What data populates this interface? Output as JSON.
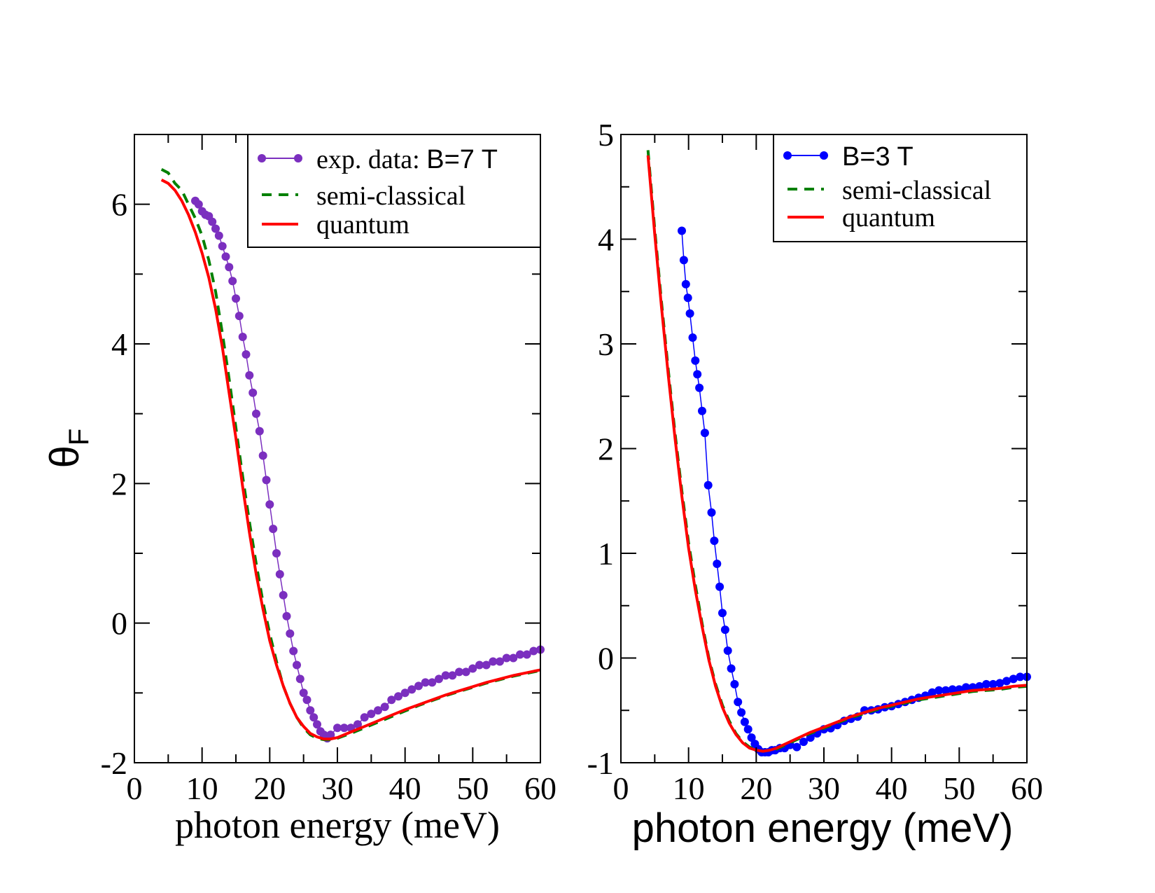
{
  "chart_data": [
    {
      "type": "line",
      "panel": "left",
      "title": "",
      "xlabel": "photon energy (meV)",
      "ylabel": "θF",
      "ylabel_main": "θ",
      "ylabel_sub": "F",
      "xlim": [
        0,
        60
      ],
      "ylim": [
        -2,
        7
      ],
      "x_ticks": [
        0,
        10,
        20,
        30,
        40,
        50,
        60
      ],
      "x_tick_labels": [
        "0",
        "10",
        "20",
        "30",
        "40",
        "50",
        "60"
      ],
      "y_ticks": [
        -2,
        0,
        2,
        4,
        6
      ],
      "y_tick_labels": [
        "-2",
        "0",
        "2",
        "4",
        "6"
      ],
      "legend_position": "top-right",
      "grid": false,
      "series": [
        {
          "name": "exp. data: B=7 T",
          "legend_label_serif": "exp. data: ",
          "legend_label_sans": "B=7 T",
          "style": "line-markers",
          "color": "#7b2fbf",
          "x": [
            9.0,
            9.5,
            10.0,
            10.5,
            11.0,
            11.5,
            12.0,
            12.5,
            13.0,
            13.5,
            14.0,
            14.5,
            15.0,
            15.5,
            16.0,
            16.5,
            17.0,
            17.5,
            18.0,
            18.5,
            19.0,
            19.5,
            20.0,
            20.5,
            21.0,
            21.5,
            22.0,
            22.5,
            23.0,
            23.5,
            24.0,
            24.5,
            25.0,
            25.5,
            26.0,
            26.5,
            27.0,
            27.5,
            28.0,
            28.5,
            29.0,
            30.0,
            31.0,
            32.0,
            33.0,
            34.0,
            35.0,
            36.0,
            37.0,
            38.0,
            39.0,
            40.0,
            41.0,
            42.0,
            43.0,
            44.0,
            45.0,
            46.0,
            47.0,
            48.0,
            49.0,
            50.0,
            51.0,
            52.0,
            53.0,
            54.0,
            55.0,
            56.0,
            57.0,
            58.0,
            59.0,
            60.0
          ],
          "y": [
            6.05,
            6.0,
            5.9,
            5.85,
            5.83,
            5.75,
            5.65,
            5.55,
            5.4,
            5.25,
            5.1,
            4.9,
            4.65,
            4.4,
            4.1,
            3.85,
            3.55,
            3.3,
            3.0,
            2.75,
            2.4,
            2.05,
            1.7,
            1.35,
            1.0,
            0.7,
            0.4,
            0.1,
            -0.15,
            -0.4,
            -0.6,
            -0.8,
            -1.0,
            -1.1,
            -1.25,
            -1.35,
            -1.45,
            -1.55,
            -1.6,
            -1.65,
            -1.6,
            -1.5,
            -1.5,
            -1.5,
            -1.45,
            -1.35,
            -1.3,
            -1.25,
            -1.2,
            -1.1,
            -1.05,
            -1.0,
            -0.95,
            -0.9,
            -0.85,
            -0.85,
            -0.8,
            -0.75,
            -0.75,
            -0.7,
            -0.7,
            -0.65,
            -0.6,
            -0.6,
            -0.55,
            -0.55,
            -0.5,
            -0.5,
            -0.45,
            -0.45,
            -0.4,
            -0.38
          ]
        },
        {
          "name": "semi-classical",
          "style": "dashed",
          "color": "#008000",
          "x": [
            4,
            5,
            6,
            7,
            8,
            9,
            10,
            11,
            12,
            13,
            14,
            15,
            16,
            17,
            18,
            19,
            20,
            21,
            22,
            23,
            24,
            25,
            26,
            27,
            28,
            29,
            30,
            32,
            34,
            36,
            38,
            40,
            42,
            44,
            46,
            48,
            50,
            52,
            54,
            56,
            58,
            60
          ],
          "y": [
            6.5,
            6.45,
            6.3,
            6.2,
            6.0,
            5.8,
            5.55,
            5.2,
            4.75,
            4.15,
            3.5,
            2.8,
            2.1,
            1.45,
            0.85,
            0.3,
            -0.15,
            -0.55,
            -0.9,
            -1.15,
            -1.35,
            -1.5,
            -1.6,
            -1.65,
            -1.67,
            -1.67,
            -1.65,
            -1.58,
            -1.5,
            -1.42,
            -1.34,
            -1.26,
            -1.18,
            -1.11,
            -1.04,
            -0.98,
            -0.92,
            -0.86,
            -0.81,
            -0.76,
            -0.72,
            -0.68
          ]
        },
        {
          "name": "quantum",
          "style": "solid",
          "color": "#ff0000",
          "x": [
            4,
            5,
            6,
            7,
            8,
            9,
            10,
            11,
            12,
            13,
            14,
            15,
            16,
            17,
            18,
            19,
            20,
            21,
            22,
            23,
            24,
            25,
            26,
            27,
            28,
            29,
            30,
            32,
            34,
            36,
            38,
            40,
            42,
            44,
            46,
            48,
            50,
            52,
            54,
            56,
            58,
            60
          ],
          "y": [
            6.35,
            6.3,
            6.2,
            6.05,
            5.85,
            5.6,
            5.3,
            4.95,
            4.5,
            3.95,
            3.3,
            2.65,
            1.95,
            1.3,
            0.7,
            0.2,
            -0.25,
            -0.6,
            -0.9,
            -1.15,
            -1.35,
            -1.48,
            -1.58,
            -1.63,
            -1.66,
            -1.66,
            -1.64,
            -1.56,
            -1.48,
            -1.4,
            -1.32,
            -1.24,
            -1.17,
            -1.1,
            -1.03,
            -0.97,
            -0.91,
            -0.85,
            -0.8,
            -0.75,
            -0.71,
            -0.67
          ]
        }
      ]
    },
    {
      "type": "line",
      "panel": "right",
      "title": "",
      "xlabel": "photon energy (meV)",
      "ylabel": "",
      "xlim": [
        0,
        60
      ],
      "ylim": [
        -1,
        5
      ],
      "x_ticks": [
        0,
        10,
        20,
        30,
        40,
        50,
        60
      ],
      "x_tick_labels": [
        "0",
        "10",
        "20",
        "30",
        "40",
        "50",
        "60"
      ],
      "y_ticks": [
        -1,
        0,
        1,
        2,
        3,
        4,
        5
      ],
      "y_tick_labels": [
        "-1",
        "0",
        "1",
        "2",
        "3",
        "4",
        "5"
      ],
      "legend_position": "top-right",
      "grid": false,
      "series": [
        {
          "name": "B=3 T",
          "style": "line-markers",
          "color": "#0000ff",
          "x": [
            9.0,
            9.3,
            9.6,
            9.9,
            10.2,
            10.6,
            11.0,
            11.3,
            11.6,
            12.0,
            12.4,
            12.9,
            13.4,
            13.8,
            14.2,
            14.6,
            15.0,
            15.4,
            15.8,
            16.3,
            16.8,
            17.3,
            17.8,
            18.3,
            18.8,
            19.3,
            19.8,
            20.3,
            20.8,
            21.3,
            21.8,
            22.3,
            22.8,
            23.5,
            24.2,
            25.0,
            26.0,
            27.0,
            28.0,
            29.0,
            30.0,
            31.0,
            32.0,
            33.0,
            34.0,
            35.0,
            36.0,
            37.0,
            38.0,
            39.0,
            40.0,
            41.0,
            42.0,
            43.0,
            44.0,
            45.0,
            46.0,
            47.0,
            48.0,
            49.0,
            50.0,
            51.0,
            52.0,
            53.0,
            54.0,
            55.0,
            56.0,
            57.0,
            58.0,
            59.0,
            60.0
          ],
          "y": [
            4.08,
            3.8,
            3.57,
            3.44,
            3.29,
            3.06,
            2.84,
            2.71,
            2.58,
            2.36,
            2.15,
            1.65,
            1.39,
            1.12,
            0.9,
            0.68,
            0.43,
            0.27,
            0.07,
            -0.1,
            -0.25,
            -0.42,
            -0.52,
            -0.61,
            -0.68,
            -0.76,
            -0.82,
            -0.87,
            -0.9,
            -0.9,
            -0.9,
            -0.88,
            -0.88,
            -0.86,
            -0.86,
            -0.83,
            -0.85,
            -0.8,
            -0.76,
            -0.72,
            -0.68,
            -0.67,
            -0.64,
            -0.6,
            -0.58,
            -0.56,
            -0.5,
            -0.5,
            -0.49,
            -0.47,
            -0.46,
            -0.44,
            -0.42,
            -0.4,
            -0.38,
            -0.36,
            -0.33,
            -0.31,
            -0.31,
            -0.3,
            -0.3,
            -0.28,
            -0.28,
            -0.27,
            -0.25,
            -0.25,
            -0.24,
            -0.22,
            -0.2,
            -0.18,
            -0.18
          ]
        },
        {
          "name": "semi-classical",
          "style": "dashed",
          "color": "#008000",
          "x": [
            4,
            5,
            6,
            7,
            8,
            9,
            10,
            11,
            12,
            13,
            14,
            15,
            16,
            17,
            18,
            19,
            20,
            21,
            22,
            23,
            24,
            25,
            26,
            27,
            28,
            30,
            32,
            34,
            36,
            38,
            40,
            42,
            44,
            46,
            48,
            50,
            52,
            54,
            56,
            58,
            60
          ],
          "y": [
            4.85,
            4.1,
            3.4,
            2.75,
            2.15,
            1.6,
            1.1,
            0.7,
            0.33,
            0.0,
            -0.25,
            -0.45,
            -0.6,
            -0.72,
            -0.8,
            -0.85,
            -0.88,
            -0.89,
            -0.88,
            -0.87,
            -0.84,
            -0.81,
            -0.78,
            -0.75,
            -0.72,
            -0.67,
            -0.62,
            -0.57,
            -0.53,
            -0.49,
            -0.46,
            -0.43,
            -0.4,
            -0.38,
            -0.36,
            -0.34,
            -0.32,
            -0.31,
            -0.3,
            -0.28,
            -0.27
          ]
        },
        {
          "name": "quantum",
          "style": "solid",
          "color": "#ff0000",
          "x": [
            4,
            5,
            6,
            7,
            8,
            9,
            10,
            11,
            12,
            13,
            14,
            15,
            16,
            17,
            18,
            19,
            20,
            21,
            22,
            23,
            24,
            25,
            26,
            27,
            28,
            30,
            32,
            34,
            36,
            38,
            40,
            42,
            44,
            46,
            48,
            50,
            52,
            54,
            56,
            58,
            60
          ],
          "y": [
            4.8,
            4.05,
            3.35,
            2.7,
            2.1,
            1.55,
            1.05,
            0.65,
            0.3,
            -0.02,
            -0.27,
            -0.47,
            -0.62,
            -0.73,
            -0.81,
            -0.86,
            -0.88,
            -0.89,
            -0.88,
            -0.86,
            -0.83,
            -0.8,
            -0.77,
            -0.74,
            -0.71,
            -0.66,
            -0.61,
            -0.56,
            -0.52,
            -0.48,
            -0.45,
            -0.42,
            -0.39,
            -0.37,
            -0.35,
            -0.33,
            -0.31,
            -0.3,
            -0.29,
            -0.27,
            -0.26
          ]
        }
      ]
    }
  ]
}
